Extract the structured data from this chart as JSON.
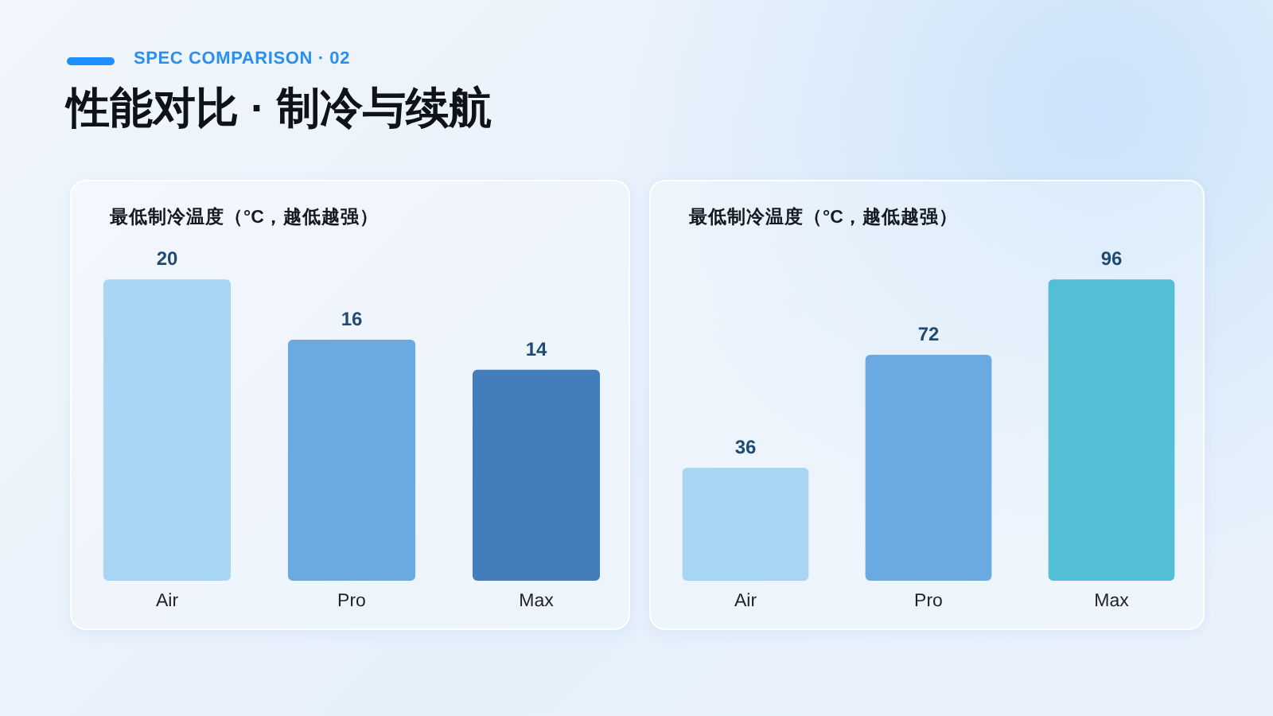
{
  "chart_data": [
    {
      "type": "other",
      "title": "性能对比 · 制冷与续航",
      "subtitle": "SPEC COMPARISON · 02"
    },
    {
      "type": "bar",
      "title": "最低制冷温度（°C，越低越强）",
      "categories": [
        "Air",
        "Pro",
        "Max"
      ],
      "values": [
        20,
        16,
        14
      ],
      "colors": [
        "#a8d5f3",
        "#6aa9e2",
        "#437dbb"
      ],
      "data_labels": true
    },
    {
      "type": "bar",
      "title": "最低制冷温度（°C，越低越强）",
      "categories": [
        "Air",
        "Pro",
        "Max"
      ],
      "values": [
        36,
        72,
        96
      ],
      "colors": [
        "#a8d5f3",
        "#6aa9e2",
        "#53bfd4"
      ],
      "data_labels": true
    }
  ]
}
